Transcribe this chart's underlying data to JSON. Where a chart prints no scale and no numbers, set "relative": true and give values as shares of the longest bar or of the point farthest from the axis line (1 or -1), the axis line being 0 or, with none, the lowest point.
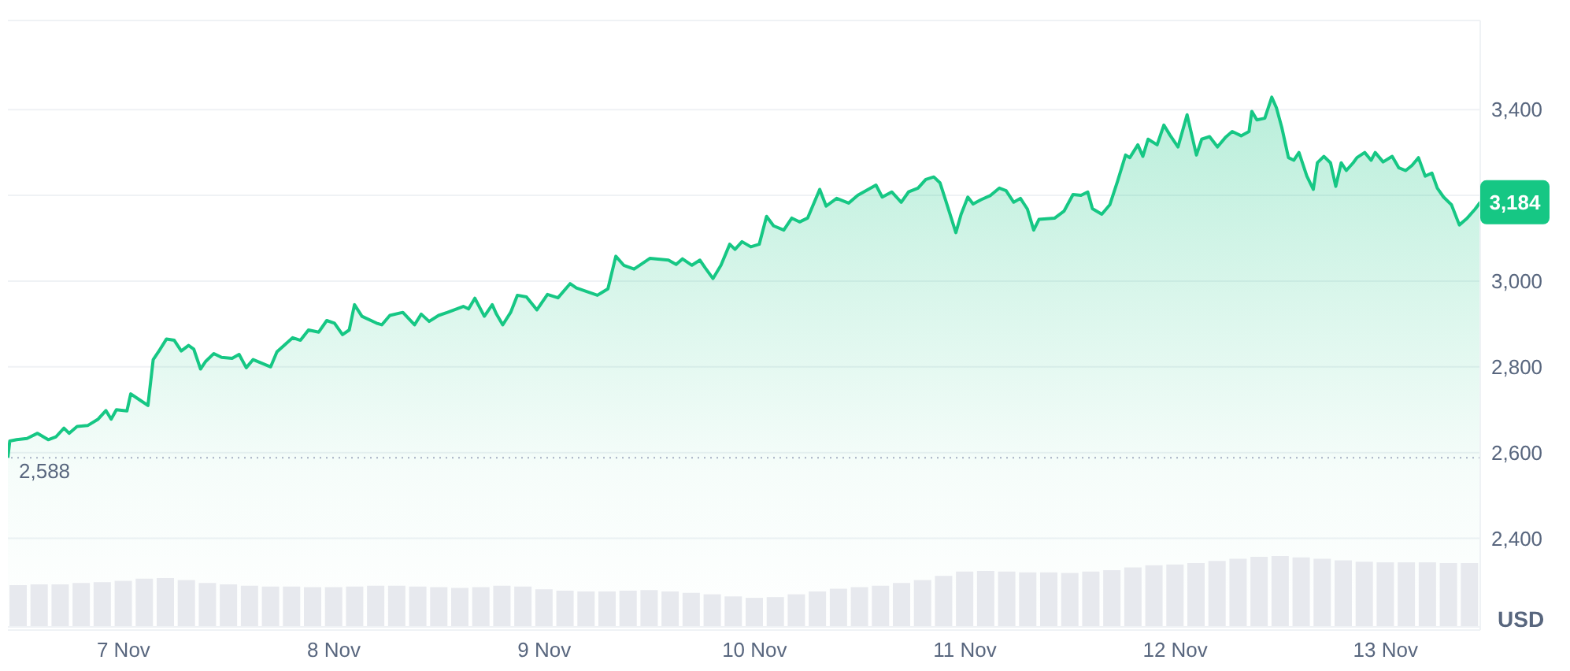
{
  "chart_data": [
    {
      "type": "area",
      "x": [
        "--11-06T10:48",
        "--11-06T11:01",
        "--11-06T11:48",
        "--11-06T12:59",
        "--11-06T14:11",
        "--11-06T15:24",
        "--11-06T16:18",
        "--11-06T17:12",
        "--11-06T17:47",
        "--11-06T18:42",
        "--11-06T19:54",
        "--11-06T21:06",
        "--11-06T21:59",
        "--11-06T22:35",
        "--11-06T23:11",
        "--11-07T00:23",
        "--11-07T00:49",
        "--11-07T01:54",
        "--11-07T02:47",
        "--11-07T03:23",
        "--11-07T03:59",
        "--11-07T04:54",
        "--11-07T05:47",
        "--11-07T06:35",
        "--11-07T07:25",
        "--11-07T08:01",
        "--11-07T08:47",
        "--11-07T09:23",
        "--11-07T10:18",
        "--11-07T11:11",
        "--11-07T12:23",
        "--11-07T13:11",
        "--11-07T14:00",
        "--11-07T14:47",
        "--11-07T16:47",
        "--11-07T17:30",
        "--11-07T19:18",
        "--11-07T20:11",
        "--11-07T21:06",
        "--11-07T22:16",
        "--11-07T23:11",
        "--11-08T00:04",
        "--11-08T00:59",
        "--11-08T01:45",
        "--11-08T02:21",
        "--11-08T03:12",
        "--11-08T04:52",
        "--11-08T05:28",
        "--11-08T06:23",
        "--11-08T07:52",
        "--11-08T09:12",
        "--11-08T09:58",
        "--11-08T10:52",
        "--11-08T11:57",
        "--11-08T12:58",
        "--11-08T14:46",
        "--11-08T15:22",
        "--11-08T16:05",
        "--11-08T17:10",
        "--11-08T18:04",
        "--11-08T18:33",
        "--11-08T19:16",
        "--11-08T20:10",
        "--11-08T20:56",
        "--11-08T21:58",
        "--11-08T23:10",
        "--11-09T00:22",
        "--11-09T01:34",
        "--11-09T02:57",
        "--11-09T03:40",
        "--11-09T06:04",
        "--11-09T07:16",
        "--11-09T08:10",
        "--11-09T09:04",
        "--11-09T10:15",
        "--11-09T12:03",
        "--11-09T14:10",
        "--11-09T15:03",
        "--11-09T15:46",
        "--11-09T16:51",
        "--11-09T17:46",
        "--11-09T18:22",
        "--11-09T19:15",
        "--11-09T20:10",
        "--11-09T21:10",
        "--11-09T21:46",
        "--11-09T22:34",
        "--11-09T23:34",
        "--11-10T00:32",
        "--11-10T01:22",
        "--11-10T02:10",
        "--11-10T03:20",
        "--11-10T04:15",
        "--11-10T05:08",
        "--11-10T06:03",
        "--11-10T07:26",
        "--11-10T08:10",
        "--11-10T09:22",
        "--11-10T10:44",
        "--11-10T11:46",
        "--11-10T13:51",
        "--11-10T14:34",
        "--11-10T15:39",
        "--11-10T16:44",
        "--11-10T17:34",
        "--11-10T18:39",
        "--11-10T19:32",
        "--11-10T20:27",
        "--11-10T21:10",
        "--11-10T21:58",
        "--11-10T22:58",
        "--11-10T23:34",
        "--11-11T00:20",
        "--11-11T00:56",
        "--11-11T01:51",
        "--11-11T02:56",
        "--11-11T03:56",
        "--11-11T04:42",
        "--11-11T05:34",
        "--11-11T06:20",
        "--11-11T07:08",
        "--11-11T07:51",
        "--11-11T08:27",
        "--11-11T10:15",
        "--11-11T11:18",
        "--11-11T12:20",
        "--11-11T13:15",
        "--11-11T14:01",
        "--11-11T14:33",
        "--11-11T15:37",
        "--11-11T16:32",
        "--11-11T17:25",
        "--11-11T18:20",
        "--11-11T18:49",
        "--11-11T19:44",
        "--11-11T20:18",
        "--11-11T20:54",
        "--11-11T21:56",
        "--11-11T22:42",
        "--11-11T23:25",
        "--11-12T00:19",
        "--11-12T01:21",
        "--11-12T02:25",
        "--11-12T03:01",
        "--11-12T03:55",
        "--11-12T04:49",
        "--11-12T05:43",
        "--11-12T06:30",
        "--11-12T07:31",
        "--11-12T08:25",
        "--11-12T08:44",
        "--11-12T09:19",
        "--11-12T10:13",
        "--11-12T11:01",
        "--11-12T11:33",
        "--11-12T12:09",
        "--11-12T12:55",
        "--11-12T13:32",
        "--11-12T14:07",
        "--11-12T15:01",
        "--11-12T15:45",
        "--11-12T16:13",
        "--11-12T16:57",
        "--11-12T17:43",
        "--11-12T18:19",
        "--11-12T18:56",
        "--11-12T19:31",
        "--11-12T20:18",
        "--11-12T20:44",
        "--11-12T21:37",
        "--11-12T22:21",
        "--11-12T22:49",
        "--11-12T23:43",
        "--11-13T00:45",
        "--11-13T01:31",
        "--11-13T02:18",
        "--11-13T03:01",
        "--11-13T03:45",
        "--11-13T04:31",
        "--11-13T05:17",
        "--11-13T05:54",
        "--11-13T06:37",
        "--11-13T07:31",
        "--11-13T08:25",
        "--11-13T09:19",
        "--11-13T10:13",
        "--11-13T10:48"
      ],
      "values": [
        2588,
        2627,
        2630,
        2633,
        2645,
        2630,
        2637,
        2657,
        2645,
        2661,
        2663,
        2678,
        2698,
        2678,
        2700,
        2697,
        2737,
        2722,
        2710,
        2817,
        2835,
        2865,
        2862,
        2837,
        2850,
        2841,
        2795,
        2813,
        2831,
        2822,
        2820,
        2829,
        2798,
        2817,
        2800,
        2835,
        2868,
        2862,
        2886,
        2881,
        2908,
        2902,
        2875,
        2886,
        2945,
        2918,
        2902,
        2898,
        2920,
        2927,
        2898,
        2923,
        2906,
        2920,
        2927,
        2941,
        2935,
        2960,
        2918,
        2945,
        2923,
        2898,
        2927,
        2967,
        2963,
        2933,
        2969,
        2961,
        2994,
        2984,
        2967,
        2982,
        3058,
        3037,
        3028,
        3053,
        3049,
        3039,
        3052,
        3037,
        3049,
        3031,
        3006,
        3037,
        3086,
        3074,
        3092,
        3080,
        3086,
        3151,
        3129,
        3119,
        3147,
        3138,
        3147,
        3214,
        3175,
        3193,
        3182,
        3200,
        3224,
        3196,
        3208,
        3184,
        3208,
        3217,
        3237,
        3243,
        3229,
        3178,
        3113,
        3156,
        3196,
        3180,
        3190,
        3200,
        3217,
        3211,
        3184,
        3193,
        3168,
        3119,
        3144,
        3147,
        3163,
        3202,
        3200,
        3208,
        3169,
        3156,
        3178,
        3233,
        3294,
        3288,
        3318,
        3291,
        3331,
        3318,
        3364,
        3340,
        3313,
        3388,
        3294,
        3331,
        3337,
        3313,
        3335,
        3349,
        3339,
        3349,
        3396,
        3376,
        3380,
        3429,
        3404,
        3359,
        3288,
        3282,
        3300,
        3245,
        3214,
        3276,
        3291,
        3276,
        3221,
        3276,
        3258,
        3276,
        3288,
        3300,
        3282,
        3300,
        3278,
        3291,
        3264,
        3258,
        3270,
        3288,
        3245,
        3252,
        3217,
        3196,
        3178,
        3131,
        3147,
        3168,
        3184
      ],
      "color": "#16c784",
      "xlim": [
        "--11-06T10:48",
        "--11-13T10:48"
      ],
      "xticks": [
        {
          "value": "--11-07",
          "label": "7 Nov"
        },
        {
          "value": "--11-08",
          "label": "8 Nov"
        },
        {
          "value": "--11-09",
          "label": "9 Nov"
        },
        {
          "value": "--11-10",
          "label": "10 Nov"
        },
        {
          "value": "--11-11",
          "label": "11 Nov"
        },
        {
          "value": "--11-12",
          "label": "12 Nov"
        },
        {
          "value": "--11-13",
          "label": "13 Nov"
        }
      ],
      "ylim": [
        2186,
        3608
      ],
      "yticks": [
        {
          "value": 2400,
          "label": "2,400"
        },
        {
          "value": 2600,
          "label": "2,600"
        },
        {
          "value": 2800,
          "label": "2,800"
        },
        {
          "value": 3000,
          "label": "3,000"
        },
        {
          "value": 3200,
          "label": null
        },
        {
          "value": 3400,
          "label": "3,400"
        }
      ],
      "ylabel": "USD",
      "grid": "y",
      "ref_lines": [
        {
          "axis": "y",
          "value": 2588,
          "label": "2,588",
          "line_style": "dotted",
          "color": "#a6b0c3"
        }
      ],
      "annotations": [
        {
          "text": "3,184",
          "x": "--11-13T10:48",
          "y": 3184
        }
      ]
    },
    {
      "type": "bar",
      "categories": [
        null,
        null,
        null,
        null,
        null,
        null,
        null,
        null,
        null,
        null,
        null,
        null,
        null,
        null,
        null,
        null,
        null,
        null,
        null,
        null,
        null,
        null,
        null,
        null,
        null,
        null,
        null,
        null,
        null,
        null,
        null,
        null,
        null,
        null,
        null,
        null,
        null,
        null,
        null,
        null,
        null,
        null,
        null,
        null,
        null,
        null,
        null,
        null,
        null,
        null,
        null,
        null,
        null,
        null,
        null,
        null,
        null,
        null,
        null,
        null,
        null,
        null,
        null,
        null,
        null,
        null,
        null,
        null,
        null,
        null
      ],
      "values": [
        0.59,
        0.6,
        0.6,
        0.62,
        0.63,
        0.65,
        0.68,
        0.69,
        0.66,
        0.62,
        0.6,
        0.58,
        0.57,
        0.57,
        0.56,
        0.56,
        0.57,
        0.58,
        0.58,
        0.57,
        0.56,
        0.55,
        0.56,
        0.58,
        0.57,
        0.53,
        0.51,
        0.5,
        0.5,
        0.51,
        0.52,
        0.5,
        0.48,
        0.46,
        0.43,
        0.41,
        0.42,
        0.46,
        0.5,
        0.54,
        0.56,
        0.58,
        0.62,
        0.66,
        0.72,
        0.78,
        0.79,
        0.78,
        0.77,
        0.77,
        0.76,
        0.78,
        0.8,
        0.84,
        0.87,
        0.88,
        0.9,
        0.93,
        0.96,
        0.99,
        1.0,
        0.98,
        0.96,
        0.94,
        0.92,
        0.91,
        0.91,
        0.91,
        0.9,
        0.9
      ],
      "color": "#e7e9ee",
      "relative": true
    }
  ]
}
